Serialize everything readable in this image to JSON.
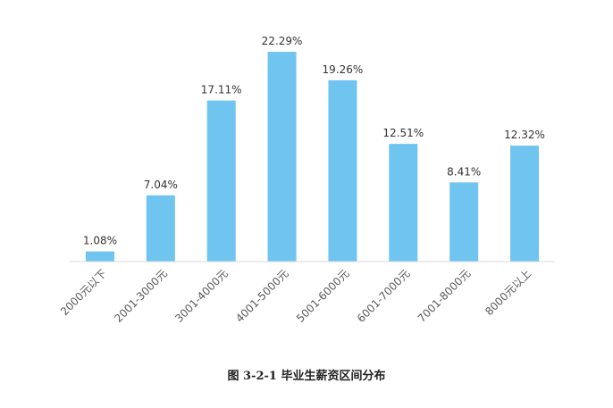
{
  "chart_data": {
    "type": "bar",
    "categories": [
      "2000元以下",
      "2001-3000元",
      "3001-4000元",
      "4001-5000元",
      "5001-6000元",
      "6001-7000元",
      "7001-8000元",
      "8000元以上"
    ],
    "values": [
      1.08,
      7.04,
      17.11,
      22.29,
      19.26,
      12.51,
      8.41,
      12.32
    ],
    "data_labels": [
      "1.08%",
      "7.04%",
      "17.11%",
      "22.29%",
      "19.26%",
      "12.51%",
      "8.41%",
      "12.32%"
    ],
    "title": "",
    "xlabel": "",
    "ylabel": "",
    "ylim": [
      0,
      24
    ],
    "grid": false,
    "legend": "none",
    "bar_color": "#70C4F0",
    "axis_color": "#D9D9D9"
  },
  "caption": "图 3-2-1   毕业生薪资区间分布"
}
